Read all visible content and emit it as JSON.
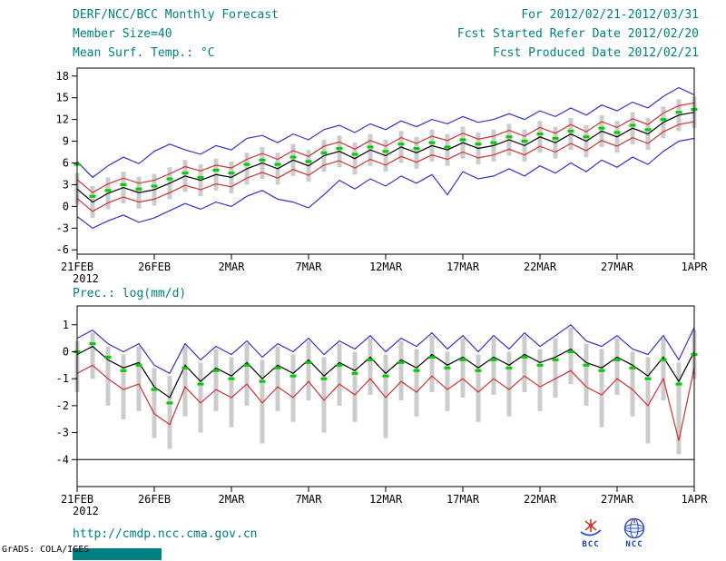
{
  "header": {
    "title": "DERF/NCC/BCC Monthly Forecast",
    "member_size": "Member Size=40",
    "for_range": "For 2012/02/21-2012/03/31",
    "refer_date": "Fcst Started Refer Date 2012/02/20",
    "produced_date": "Fcst Produced Date 2012/02/21"
  },
  "footer": {
    "url": "http://cmdp.ncc.cma.gov.cn",
    "credit": "GrADS: COLA/IGES",
    "bcc_label": "BCC",
    "ncc_label": "NCC"
  },
  "colors": {
    "accent_teal": "#008080",
    "max_min_blue": "#3333cc",
    "bound_red": "#cc3333",
    "mean_black": "#000000",
    "marker_green": "#00cc00",
    "spread_gray": "#cccccc"
  },
  "chart_data": [
    {
      "type": "line",
      "label": "Mean Surf. Temp.: °C",
      "n": 41,
      "ylim": [
        -6.6,
        19.1
      ],
      "yticks": [
        18,
        15,
        12,
        9,
        6,
        3,
        0,
        -3,
        -6
      ],
      "x_tick_indices": [
        0,
        5,
        10,
        15,
        20,
        25,
        30,
        35,
        40
      ],
      "x_tick_labels": [
        "21FEB",
        "26FEB",
        "2MAR",
        "7MAR",
        "12MAR",
        "17MAR",
        "22MAR",
        "27MAR",
        "1APR"
      ],
      "x_tick_sublabel": "2012",
      "hline": null,
      "bars": {
        "name": "ensemble-spread-bar",
        "color": "#cccccc",
        "upper": [
          4.6,
          2.8,
          4.0,
          4.8,
          4.1,
          4.5,
          5.4,
          6.4,
          5.8,
          6.6,
          6.2,
          7.4,
          8.2,
          7.4,
          8.6,
          7.8,
          9.2,
          9.8,
          8.8,
          10.0,
          9.2,
          10.4,
          9.6,
          10.6,
          10.0,
          11.0,
          10.2,
          10.6,
          11.4,
          10.6,
          11.8,
          11.0,
          12.2,
          11.2,
          12.6,
          11.8,
          13.0,
          12.2,
          13.8,
          14.8,
          15.2
        ],
        "lower": [
          0.2,
          -1.6,
          -0.4,
          0.4,
          -0.3,
          0.1,
          1.0,
          2.0,
          1.4,
          2.2,
          1.8,
          3.0,
          3.8,
          3.0,
          4.2,
          3.4,
          4.8,
          5.4,
          4.4,
          5.6,
          4.8,
          6.0,
          5.2,
          6.2,
          5.6,
          6.6,
          5.8,
          6.2,
          7.0,
          6.2,
          7.4,
          6.6,
          7.8,
          6.8,
          8.2,
          7.4,
          8.6,
          7.8,
          9.4,
          10.4,
          10.8
        ]
      },
      "series": [
        {
          "name": "max-member-line",
          "color": "#3333cc",
          "values": [
            6.2,
            4.0,
            5.6,
            6.8,
            5.9,
            7.6,
            8.6,
            7.8,
            7.2,
            8.4,
            7.8,
            9.4,
            9.8,
            8.8,
            10.0,
            9.2,
            10.6,
            11.2,
            10.2,
            11.4,
            10.6,
            11.8,
            11.0,
            12.0,
            11.4,
            12.4,
            11.6,
            12.0,
            12.8,
            12.0,
            13.2,
            12.4,
            13.6,
            12.6,
            14.0,
            13.2,
            14.4,
            13.6,
            15.2,
            16.4,
            15.4
          ]
        },
        {
          "name": "min-member-line",
          "color": "#3333cc",
          "values": [
            -1.4,
            -3.0,
            -2.0,
            -1.2,
            -2.2,
            -1.6,
            -0.6,
            0.4,
            -0.4,
            0.6,
            0.0,
            1.4,
            2.2,
            1.0,
            0.6,
            -0.2,
            1.6,
            3.6,
            2.4,
            3.8,
            2.8,
            4.2,
            3.2,
            4.4,
            1.6,
            4.8,
            3.8,
            4.2,
            5.2,
            4.2,
            5.6,
            4.6,
            6.0,
            4.8,
            6.4,
            5.4,
            6.8,
            5.8,
            7.6,
            9.0,
            9.4
          ]
        },
        {
          "name": "upper-bound-line",
          "color": "#cc3333",
          "values": [
            3.7,
            1.9,
            3.1,
            3.9,
            3.2,
            3.6,
            4.5,
            5.5,
            4.9,
            5.7,
            5.3,
            6.5,
            7.3,
            6.5,
            7.7,
            6.9,
            8.3,
            8.9,
            7.9,
            9.1,
            8.3,
            9.5,
            8.7,
            9.7,
            9.1,
            10.1,
            9.3,
            9.7,
            10.5,
            9.7,
            10.9,
            10.1,
            11.3,
            10.3,
            11.7,
            10.9,
            12.1,
            11.3,
            12.9,
            13.9,
            14.3
          ]
        },
        {
          "name": "lower-bound-line",
          "color": "#cc3333",
          "values": [
            1.1,
            -0.7,
            0.5,
            1.3,
            0.6,
            1.0,
            1.9,
            2.9,
            2.3,
            3.1,
            2.7,
            3.9,
            4.7,
            3.9,
            5.1,
            4.3,
            5.7,
            6.3,
            5.3,
            6.5,
            5.7,
            6.9,
            6.1,
            7.1,
            6.5,
            7.5,
            6.7,
            7.1,
            7.9,
            7.1,
            8.3,
            7.5,
            8.7,
            7.7,
            9.1,
            8.3,
            9.5,
            8.7,
            10.3,
            11.3,
            11.7
          ]
        },
        {
          "name": "ensemble-mean-line",
          "color": "#000000",
          "values": [
            2.4,
            0.6,
            1.8,
            2.6,
            1.9,
            2.3,
            3.2,
            4.2,
            3.6,
            4.4,
            4.0,
            5.2,
            6.0,
            5.2,
            6.4,
            5.6,
            7.0,
            7.6,
            6.6,
            7.8,
            7.0,
            8.2,
            7.4,
            8.4,
            7.8,
            8.8,
            8.0,
            8.4,
            9.2,
            8.4,
            9.6,
            8.8,
            10.0,
            9.0,
            10.4,
            9.6,
            10.8,
            10.0,
            11.6,
            12.6,
            13.0
          ]
        }
      ],
      "markers": {
        "name": "climatology-marker",
        "color": "#00cc00",
        "values": [
          5.8,
          1.4,
          2.2,
          3.0,
          2.4,
          2.8,
          3.8,
          4.6,
          4.0,
          5.0,
          4.6,
          5.8,
          6.4,
          5.8,
          6.8,
          6.2,
          7.4,
          8.0,
          7.2,
          8.2,
          7.6,
          8.6,
          8.0,
          8.8,
          8.2,
          9.2,
          8.6,
          8.8,
          9.6,
          9.0,
          10.0,
          9.4,
          10.4,
          9.6,
          10.8,
          10.2,
          11.2,
          10.6,
          12.0,
          13.0,
          13.4
        ]
      }
    },
    {
      "type": "line",
      "label": "Prec.: log(mm/d)",
      "n": 41,
      "ylim": [
        -5.0,
        1.7
      ],
      "yticks": [
        1,
        0,
        -1,
        -2,
        -3,
        -4
      ],
      "x_tick_indices": [
        0,
        5,
        10,
        15,
        20,
        25,
        30,
        35,
        40
      ],
      "x_tick_labels": [
        "21FEB",
        "26FEB",
        "2MAR",
        "7MAR",
        "12MAR",
        "17MAR",
        "22MAR",
        "27MAR",
        "1APR"
      ],
      "x_tick_sublabel": "2012",
      "hline": -4,
      "bars": {
        "name": "ensemble-spread-bar",
        "color": "#cccccc",
        "upper": [
          0.4,
          0.7,
          0.2,
          -0.1,
          0.2,
          -0.6,
          -0.9,
          0.2,
          -0.4,
          0.1,
          -0.2,
          0.3,
          -0.3,
          0.2,
          -0.1,
          0.4,
          -0.2,
          0.3,
          0.0,
          0.5,
          -0.1,
          0.4,
          0.1,
          0.6,
          0.0,
          0.5,
          -0.1,
          0.5,
          0.0,
          0.6,
          0.1,
          0.5,
          0.9,
          0.3,
          0.1,
          0.5,
          0.0,
          -0.2,
          0.5,
          -0.4,
          0.8
        ],
        "lower": [
          -1.5,
          -1.0,
          -2.0,
          -2.5,
          -2.2,
          -3.2,
          -3.6,
          -2.4,
          -3.0,
          -2.2,
          -2.8,
          -2.0,
          -3.4,
          -2.2,
          -2.6,
          -1.8,
          -3.0,
          -2.0,
          -2.6,
          -1.6,
          -3.2,
          -1.8,
          -2.4,
          -1.5,
          -2.2,
          -1.7,
          -2.6,
          -1.6,
          -2.4,
          -1.5,
          -2.2,
          -1.7,
          -1.2,
          -2.0,
          -2.8,
          -1.6,
          -2.4,
          -3.4,
          -1.8,
          -3.8,
          -1.0
        ]
      },
      "series": [
        {
          "name": "max-member-line",
          "color": "#3333cc",
          "values": [
            0.5,
            0.8,
            0.3,
            0.0,
            0.3,
            -0.5,
            -0.8,
            0.3,
            -0.3,
            0.2,
            -0.1,
            0.4,
            -0.2,
            0.3,
            0.0,
            0.5,
            -0.1,
            0.4,
            0.1,
            0.6,
            0.0,
            0.5,
            0.2,
            0.7,
            0.1,
            0.6,
            0.0,
            0.6,
            0.1,
            0.7,
            0.2,
            0.6,
            1.0,
            0.4,
            0.2,
            0.6,
            0.1,
            -0.1,
            0.6,
            -0.3,
            0.9
          ]
        },
        {
          "name": "lower-bound-line",
          "color": "#cc3333",
          "values": [
            -0.8,
            -0.5,
            -1.0,
            -1.4,
            -1.2,
            -2.3,
            -2.7,
            -1.3,
            -1.9,
            -1.4,
            -1.7,
            -1.2,
            -1.9,
            -1.3,
            -1.7,
            -1.1,
            -1.8,
            -1.2,
            -1.6,
            -1.0,
            -1.7,
            -1.1,
            -1.5,
            -0.9,
            -1.4,
            -1.0,
            -1.5,
            -1.0,
            -1.4,
            -0.9,
            -1.3,
            -1.0,
            -0.7,
            -1.3,
            -1.6,
            -1.0,
            -1.4,
            -2.0,
            -1.0,
            -3.3,
            -0.6
          ]
        },
        {
          "name": "ensemble-mean-line",
          "color": "#000000",
          "values": [
            -0.1,
            0.2,
            -0.3,
            -0.6,
            -0.4,
            -1.3,
            -1.7,
            -0.5,
            -1.1,
            -0.6,
            -0.9,
            -0.4,
            -1.0,
            -0.5,
            -0.8,
            -0.3,
            -0.9,
            -0.4,
            -0.7,
            -0.2,
            -0.8,
            -0.3,
            -0.6,
            -0.1,
            -0.5,
            -0.2,
            -0.6,
            -0.2,
            -0.5,
            -0.1,
            -0.4,
            -0.2,
            0.1,
            -0.4,
            -0.6,
            -0.2,
            -0.5,
            -0.9,
            -0.2,
            -1.1,
            0.0
          ]
        }
      ],
      "markers": {
        "name": "climatology-marker",
        "color": "#00cc00",
        "values": [
          0.0,
          0.3,
          -0.2,
          -0.7,
          -0.5,
          -1.4,
          -1.9,
          -0.6,
          -1.2,
          -0.7,
          -1.0,
          -0.5,
          -1.1,
          -0.6,
          -0.9,
          -0.4,
          -1.0,
          -0.5,
          -0.8,
          -0.3,
          -0.9,
          -0.4,
          -0.7,
          -0.2,
          -0.6,
          -0.3,
          -0.7,
          -0.3,
          -0.6,
          -0.2,
          -0.5,
          -0.3,
          0.0,
          -0.5,
          -0.7,
          -0.3,
          -0.6,
          -1.0,
          -0.3,
          -1.2,
          -0.1
        ]
      }
    }
  ]
}
